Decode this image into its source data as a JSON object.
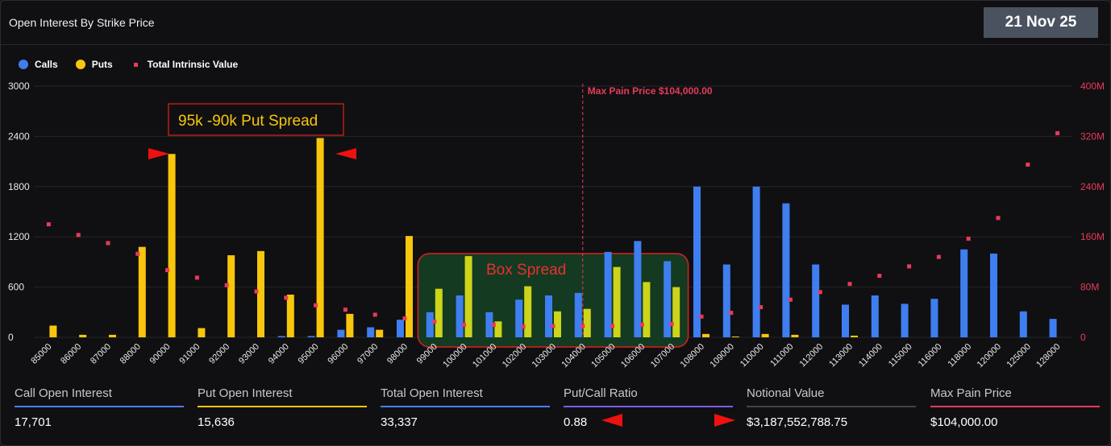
{
  "header": {
    "title": "Open Interest By Strike Price",
    "date": "21 Nov 25"
  },
  "legend": {
    "calls": "Calls",
    "puts": "Puts",
    "intrinsic": "Total Intrinsic Value"
  },
  "colors": {
    "calls": "#3f7ef0",
    "puts": "#f8c60c",
    "intrinsic": "#e83a5a",
    "grid": "#26262a",
    "box_fill": "#143a22",
    "box_border": "#e02020",
    "puts_in_box": "#cdd41a"
  },
  "annotations": {
    "put_spread": "95k -90k Put Spread",
    "box_spread": "Box Spread",
    "max_pain": "Max Pain Price $104,000.00"
  },
  "chart_data": {
    "type": "bar",
    "categories": [
      "85000",
      "86000",
      "87000",
      "88000",
      "90000",
      "91000",
      "92000",
      "93000",
      "94000",
      "95000",
      "96000",
      "97000",
      "98000",
      "99000",
      "100000",
      "101000",
      "102000",
      "103000",
      "104000",
      "105000",
      "106000",
      "107000",
      "108000",
      "109000",
      "110000",
      "111000",
      "112000",
      "113000",
      "114000",
      "115000",
      "116000",
      "118000",
      "120000",
      "125000",
      "128000"
    ],
    "series": [
      {
        "name": "Calls",
        "axis": "left",
        "values": [
          0,
          0,
          0,
          0,
          0,
          0,
          0,
          0,
          15,
          15,
          90,
          120,
          210,
          300,
          500,
          300,
          450,
          500,
          530,
          1020,
          1150,
          910,
          1800,
          870,
          1800,
          1600,
          870,
          390,
          500,
          400,
          460,
          1050,
          1000,
          310,
          220
        ]
      },
      {
        "name": "Puts",
        "axis": "left",
        "values": [
          140,
          30,
          30,
          1080,
          2190,
          110,
          980,
          1030,
          510,
          2380,
          280,
          90,
          1210,
          580,
          970,
          190,
          610,
          310,
          340,
          840,
          660,
          600,
          40,
          10,
          40,
          30,
          0,
          20,
          0,
          0,
          0,
          0,
          0,
          0,
          0
        ]
      },
      {
        "name": "Total Intrinsic Value",
        "axis": "right",
        "type": "scatter",
        "values": [
          180,
          163,
          150,
          133,
          107,
          95,
          83,
          73,
          63,
          51,
          44,
          36,
          30,
          25,
          20,
          20,
          17,
          18,
          18,
          18,
          20,
          21,
          33,
          39,
          48,
          60,
          72,
          85,
          98,
          113,
          128,
          157,
          190,
          275,
          325
        ]
      }
    ],
    "y_left": {
      "min": 0,
      "max": 3000,
      "ticks": [
        "0",
        "600",
        "1200",
        "1800",
        "2400",
        "3000"
      ]
    },
    "y_right": {
      "min": 0,
      "max": 400,
      "ticks": [
        "0",
        "80M",
        "160M",
        "240M",
        "320M",
        "400M"
      ]
    },
    "grid": true,
    "legend_position": "top-left",
    "max_pain_strike": "104000"
  },
  "stats": [
    {
      "label": "Call Open Interest",
      "value": "17,701",
      "color": "#4a7ef0"
    },
    {
      "label": "Put Open Interest",
      "value": "15,636",
      "color": "#f8c60c"
    },
    {
      "label": "Total Open Interest",
      "value": "33,337",
      "color": "#4a7ef0"
    },
    {
      "label": "Put/Call Ratio",
      "value": "0.88",
      "color": "#7b5cf0"
    },
    {
      "label": "Notional Value",
      "value": "$3,187,552,788.75",
      "color": "#444448"
    },
    {
      "label": "Max Pain Price",
      "value": "$104,000.00",
      "color": "#e83a5a"
    }
  ]
}
